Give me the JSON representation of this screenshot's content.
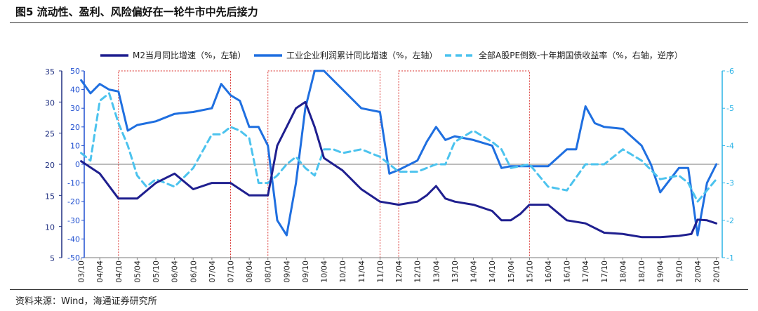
{
  "figure": {
    "title": "图5  流动性、盈利、风险偏好在一轮牛市中先后接力",
    "source": "资料来源：Wind，海通证券研究所"
  },
  "colors": {
    "m2": "#1f1f8f",
    "profit": "#1f6fe0",
    "pe": "#4cc3ee",
    "box": "#d9302c",
    "axis_left_outer": "#1f2f80",
    "axis_left_inner": "#1f4fd0",
    "axis_right": "#2ab3e6"
  },
  "chart_data": {
    "type": "line",
    "title": "",
    "legend_position": "top",
    "x_tick_labels": [
      "03/10",
      "04/04",
      "04/10",
      "05/04",
      "05/10",
      "06/04",
      "06/10",
      "07/04",
      "07/10",
      "08/04",
      "08/10",
      "09/04",
      "09/10",
      "10/04",
      "10/10",
      "11/04",
      "11/10",
      "12/04",
      "12/10",
      "13/04",
      "13/10",
      "14/04",
      "14/10",
      "15/04",
      "15/10",
      "16/04",
      "16/10",
      "17/04",
      "17/10",
      "18/04",
      "18/10",
      "19/04",
      "19/10",
      "20/04",
      "20/10"
    ],
    "axes": {
      "left_outer": {
        "ylim": [
          5,
          35
        ],
        "ticks": [
          5,
          10,
          15,
          20,
          25,
          30,
          35
        ]
      },
      "left_inner": {
        "ylim": [
          -50,
          50
        ],
        "ticks": [
          -50,
          -40,
          -30,
          -20,
          -10,
          0,
          10,
          20,
          30,
          40,
          50
        ]
      },
      "right": {
        "ylim": [
          -1,
          -6
        ],
        "ticks": [
          -1,
          -2,
          -3,
          -4,
          -5,
          -6
        ],
        "inverted": true
      }
    },
    "highlight_periods": [
      {
        "start": "04/10",
        "end": "07/10"
      },
      {
        "start": "08/10",
        "end": "11/10"
      },
      {
        "start": "12/04",
        "end": "15/10"
      }
    ],
    "series": [
      {
        "name": "M2当月同比增速（%，左轴）",
        "axis": "left_outer",
        "style": "solid",
        "x": [
          "03/10",
          "04/04",
          "04/10",
          "05/04",
          "05/10",
          "06/04",
          "06/10",
          "07/04",
          "07/10",
          "08/04",
          "08/10",
          "09/01",
          "09/04",
          "09/07",
          "09/10",
          "10/01",
          "10/04",
          "10/10",
          "11/04",
          "11/10",
          "12/04",
          "12/10",
          "13/01",
          "13/04",
          "13/07",
          "13/10",
          "14/04",
          "14/10",
          "15/01",
          "15/04",
          "15/07",
          "15/10",
          "16/04",
          "16/10",
          "17/04",
          "17/10",
          "18/04",
          "18/10",
          "19/04",
          "19/10",
          "20/02",
          "20/04",
          "20/07",
          "20/10"
        ],
        "values": [
          20.5,
          18.5,
          14.5,
          14.5,
          17,
          18.5,
          16,
          17,
          17,
          15,
          15,
          23,
          26,
          29,
          30,
          26,
          21,
          19,
          16,
          14,
          13.5,
          14,
          15,
          16.5,
          14.5,
          14,
          13.5,
          12.5,
          11,
          11,
          12,
          13.5,
          13.5,
          11,
          10.5,
          9,
          8.8,
          8.3,
          8.3,
          8.5,
          8.8,
          11.1,
          11,
          10.5
        ]
      },
      {
        "name": "工业企业利润累计同比增速（%，左轴）",
        "axis": "left_inner",
        "style": "solid",
        "x": [
          "03/10",
          "04/01",
          "04/04",
          "04/07",
          "04/10",
          "05/01",
          "05/04",
          "05/07",
          "05/10",
          "06/04",
          "06/10",
          "07/04",
          "07/07",
          "07/10",
          "08/01",
          "08/04",
          "08/07",
          "08/10",
          "09/01",
          "09/04",
          "09/07",
          "09/10",
          "10/01",
          "10/04",
          "10/07",
          "10/10",
          "11/04",
          "11/10",
          "12/01",
          "12/04",
          "12/10",
          "13/01",
          "13/04",
          "13/07",
          "13/10",
          "14/04",
          "14/10",
          "15/01",
          "15/04",
          "15/10",
          "16/04",
          "16/10",
          "17/01",
          "17/04",
          "17/07",
          "17/10",
          "18/04",
          "18/10",
          "19/01",
          "19/04",
          "19/10",
          "20/01",
          "20/04",
          "20/07",
          "20/10"
        ],
        "values": [
          45,
          38,
          43,
          40,
          39,
          18,
          21,
          22,
          23,
          27,
          28,
          30,
          43,
          37,
          34,
          20,
          20,
          10,
          -30,
          -38,
          -10,
          30,
          88,
          60,
          45,
          40,
          30,
          28,
          -5,
          -3,
          2,
          12,
          20,
          13,
          15,
          13,
          10,
          -2,
          -1,
          -1,
          -1,
          8,
          8,
          31,
          22,
          20,
          19,
          10,
          0,
          -15,
          -2,
          -2,
          -38,
          -10,
          0
        ]
      },
      {
        "name": "全部A股PE倒数-十年期国债收益率（%，右轴，逆序）",
        "axis": "right",
        "style": "dashed",
        "x": [
          "03/10",
          "04/01",
          "04/04",
          "04/07",
          "04/10",
          "05/01",
          "05/04",
          "05/07",
          "05/10",
          "06/04",
          "06/10",
          "07/04",
          "07/07",
          "07/10",
          "08/01",
          "08/04",
          "08/07",
          "08/10",
          "09/01",
          "09/04",
          "09/07",
          "09/10",
          "10/01",
          "10/04",
          "10/07",
          "10/10",
          "11/04",
          "11/10",
          "12/01",
          "12/04",
          "12/10",
          "13/04",
          "13/07",
          "13/10",
          "14/04",
          "14/10",
          "15/01",
          "15/04",
          "15/10",
          "16/04",
          "16/10",
          "17/04",
          "17/10",
          "18/04",
          "18/10",
          "19/04",
          "19/10",
          "20/01",
          "20/04",
          "20/07",
          "20/10"
        ],
        "values": [
          -3.8,
          -3.6,
          -5.2,
          -5.4,
          -4.6,
          -4,
          -3.2,
          -2.9,
          -3.1,
          -2.9,
          -3.4,
          -4.3,
          -4.3,
          -4.5,
          -4.4,
          -4.2,
          -3.0,
          -3.0,
          -3.2,
          -3.5,
          -3.7,
          -3.4,
          -3.2,
          -3.9,
          -3.9,
          -3.8,
          -3.9,
          -3.7,
          -3.5,
          -3.3,
          -3.3,
          -3.5,
          -3.5,
          -4.1,
          -4.4,
          -4.1,
          -3.9,
          -3.4,
          -3.5,
          -2.9,
          -2.8,
          -3.5,
          -3.5,
          -3.9,
          -3.6,
          -3.1,
          -3.2,
          -3.0,
          -2.5,
          -2.8,
          -3.1
        ]
      }
    ]
  }
}
